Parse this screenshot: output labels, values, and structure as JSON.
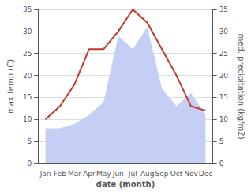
{
  "chart_data": {
    "type": "line",
    "categories": [
      "Jan",
      "Feb",
      "Mar",
      "Apr",
      "May",
      "Jun",
      "Jul",
      "Aug",
      "Sep",
      "Oct",
      "Nov",
      "Dec"
    ],
    "series": [
      {
        "type": "area",
        "color": "#c5cff5",
        "axis": "y2",
        "values": [
          8,
          8,
          9,
          11,
          14,
          29,
          26,
          31,
          17,
          13,
          16,
          11
        ]
      },
      {
        "type": "line",
        "color": "#c0392b",
        "values": [
          10,
          13,
          18,
          26,
          26,
          30,
          35,
          32,
          26,
          20,
          13,
          12
        ]
      }
    ],
    "xlabel": "date (month)",
    "ylabel": "max temp (C)",
    "y2label": "med. precipitation (kg/m2)",
    "ylim": [
      0,
      35
    ],
    "yticks": [
      0,
      5,
      10,
      15,
      20,
      25,
      30,
      35
    ],
    "y2lim": [
      0,
      35
    ],
    "y2ticks": [
      0,
      5,
      10,
      15,
      20,
      25,
      30,
      35
    ],
    "grid": true
  }
}
